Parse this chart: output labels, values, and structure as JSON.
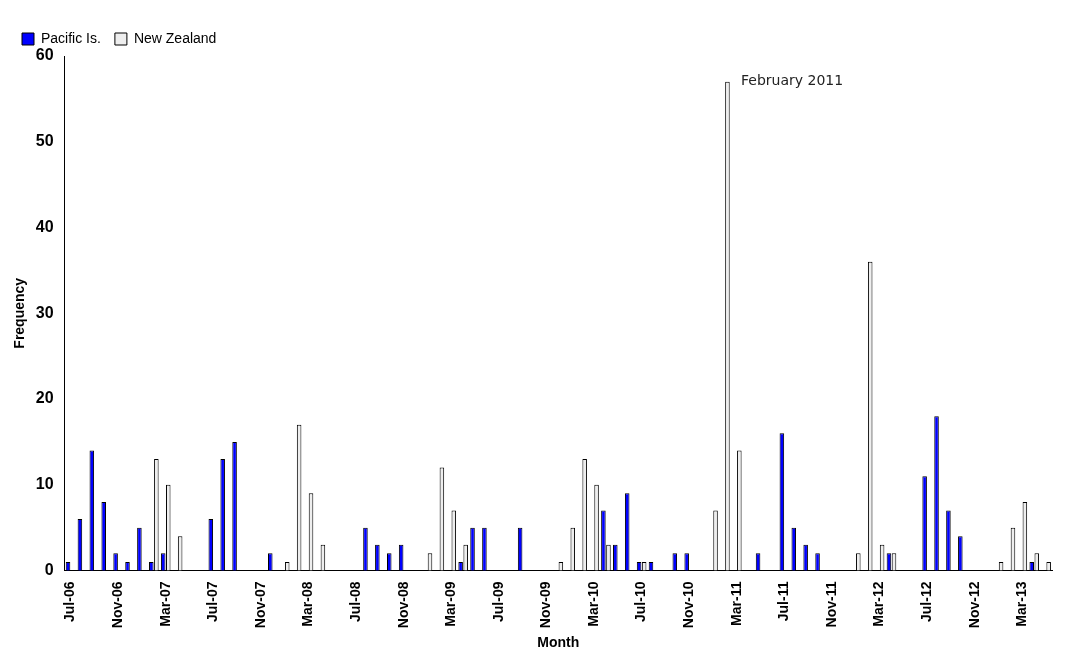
{
  "chart_data": {
    "type": "bar",
    "xlabel": "Month",
    "ylabel": "Frequency",
    "categories": [
      "Jul-06",
      null,
      null,
      null,
      "Nov-06",
      null,
      null,
      null,
      "Mar-07",
      null,
      null,
      null,
      "Jul-07",
      null,
      null,
      null,
      "Nov-07",
      null,
      null,
      null,
      "Mar-08",
      null,
      null,
      null,
      "Jul-08",
      null,
      null,
      null,
      "Nov-08",
      null,
      null,
      null,
      "Mar-09",
      null,
      null,
      null,
      "Jul-09",
      null,
      null,
      null,
      "Nov-09",
      null,
      null,
      null,
      "Mar-10",
      null,
      null,
      null,
      "Jul-10",
      null,
      null,
      null,
      "Nov-10",
      null,
      null,
      null,
      "Mar-11",
      null,
      null,
      null,
      "Jul-11",
      null,
      null,
      null,
      "Nov-11",
      null,
      null,
      null,
      "Mar-12",
      null,
      null,
      null,
      "Jul-12",
      null,
      null,
      null,
      "Nov-12",
      null,
      null,
      null,
      "Mar-13",
      null,
      null
    ],
    "series": [
      {
        "name": "Pacific Is.",
        "color": "#0000ff",
        "values": [
          1,
          6,
          14,
          8,
          2,
          1,
          5,
          1,
          2,
          0,
          0,
          0,
          6,
          13,
          15,
          0,
          0,
          2,
          0,
          0,
          0,
          0,
          0,
          0,
          0,
          5,
          3,
          2,
          3,
          0,
          0,
          0,
          0,
          1,
          5,
          5,
          0,
          0,
          5,
          0,
          0,
          0,
          0,
          0,
          0,
          7,
          3,
          9,
          1,
          1,
          0,
          2,
          2,
          0,
          0,
          0,
          0,
          0,
          2,
          0,
          16,
          5,
          3,
          2,
          0,
          0,
          0,
          0,
          0,
          2,
          0,
          0,
          11,
          18,
          7,
          4,
          0,
          0,
          0,
          0,
          0,
          1,
          0
        ]
      },
      {
        "name": "New Zealand",
        "color": "#eeeeee",
        "values": [
          0,
          0,
          0,
          0,
          0,
          0,
          0,
          13,
          10,
          4,
          0,
          0,
          0,
          0,
          0,
          0,
          0,
          0,
          1,
          17,
          9,
          3,
          0,
          0,
          0,
          0,
          0,
          0,
          0,
          0,
          2,
          12,
          7,
          3,
          0,
          0,
          0,
          0,
          0,
          0,
          0,
          1,
          5,
          13,
          10,
          3,
          0,
          0,
          1,
          0,
          0,
          0,
          0,
          0,
          7,
          57,
          14,
          0,
          0,
          0,
          0,
          0,
          0,
          0,
          0,
          0,
          2,
          36,
          3,
          2,
          0,
          0,
          0,
          0,
          0,
          0,
          0,
          0,
          1,
          5,
          8,
          2,
          1
        ]
      }
    ],
    "ylim": [
      0,
      60
    ],
    "yticks": [
      0,
      10,
      20,
      30,
      40,
      50,
      60
    ],
    "grid": false,
    "legend": "top left",
    "annotations": [
      "February 2011"
    ]
  }
}
